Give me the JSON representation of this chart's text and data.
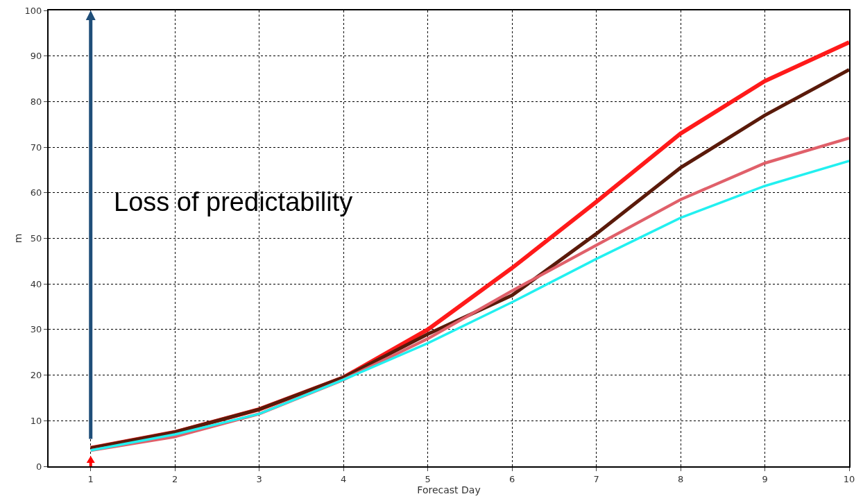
{
  "chart_data": {
    "type": "line",
    "xlabel": "Forecast Day",
    "ylabel": "m",
    "x": [
      1,
      2,
      3,
      4,
      5,
      6,
      7,
      8,
      9,
      10
    ],
    "series": [
      {
        "color": "#ff1a1a",
        "values": [
          4,
          7.5,
          12.5,
          19.5,
          30,
          43.5,
          58,
          73,
          84.5,
          93
        ]
      },
      {
        "color": "#5a1a0a",
        "values": [
          4,
          7.5,
          12.5,
          19.5,
          29,
          37.5,
          51,
          65.5,
          77,
          87
        ]
      },
      {
        "color": "#e0606a",
        "values": [
          3.5,
          6.5,
          11.5,
          19,
          28,
          38.5,
          48.5,
          58.5,
          66.5,
          72
        ]
      },
      {
        "color": "#22f0f0",
        "values": [
          3.5,
          7,
          11.5,
          19,
          27,
          36,
          45.5,
          54.5,
          61.5,
          67
        ]
      }
    ],
    "xlim": [
      0.5,
      10
    ],
    "xticks": [
      1,
      2,
      3,
      4,
      5,
      6,
      7,
      8,
      9,
      10
    ],
    "ylim": [
      0,
      100
    ],
    "yticks": [
      0,
      10,
      20,
      30,
      40,
      50,
      60,
      70,
      80,
      90,
      100
    ],
    "grid": true,
    "marker": "none",
    "line_style": "solid",
    "annotations": [
      "Loss of predictability"
    ]
  }
}
